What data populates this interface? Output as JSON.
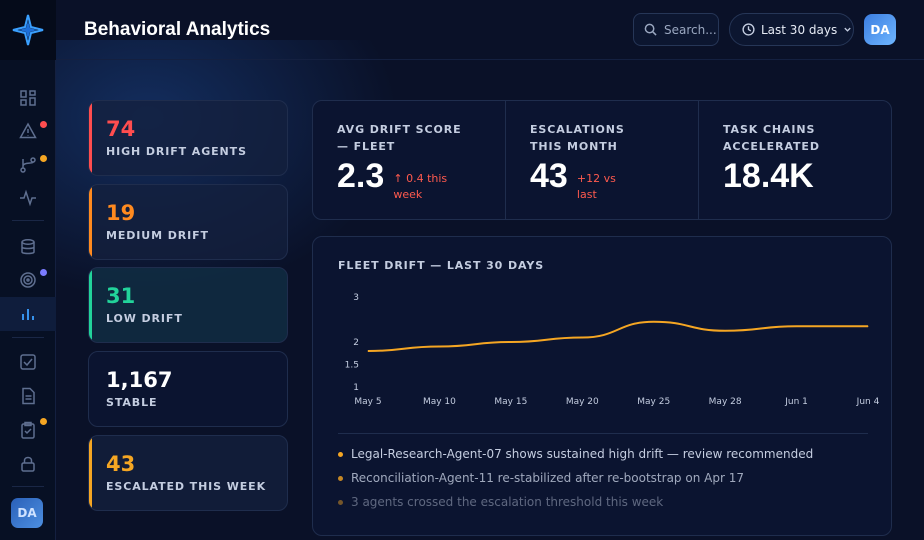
{
  "header": {
    "title": "Behavioral Analytics",
    "search_placeholder": "Search...",
    "date_range": "Last 30 days",
    "user_initials": "DA"
  },
  "sidebar": {
    "user_initials": "DA",
    "items": [
      {
        "icon": "dashboard-icon"
      },
      {
        "icon": "alert-triangle-icon",
        "badge_color": "#ff4d4f"
      },
      {
        "icon": "git-branch-icon",
        "badge_color": "#f5a623"
      },
      {
        "icon": "activity-icon"
      },
      {
        "icon": "database-icon"
      },
      {
        "icon": "target-icon",
        "badge_color": "#7b7cff"
      },
      {
        "icon": "bar-chart-icon",
        "active": true
      },
      {
        "icon": "check-square-icon"
      },
      {
        "icon": "file-text-icon"
      },
      {
        "icon": "clipboard-check-icon",
        "badge_color": "#f5a623"
      },
      {
        "icon": "lock-icon"
      }
    ]
  },
  "stat_cards": [
    {
      "value": "74",
      "label": "HIGH DRIFT AGENTS",
      "color": "#ff4d4f"
    },
    {
      "value": "19",
      "label": "MEDIUM DRIFT",
      "color": "#ff8a1f"
    },
    {
      "value": "31",
      "label": "LOW DRIFT",
      "color": "#22d39a"
    },
    {
      "value": "1,167",
      "label": "STABLE",
      "color": "#ffffff"
    },
    {
      "value": "43",
      "label": "ESCALATED THIS WEEK",
      "color": "#f5a623"
    }
  ],
  "kpis": [
    {
      "label": "AVG DRIFT SCORE — FLEET",
      "value": "2.3",
      "delta": "↑ 0.4 this week"
    },
    {
      "label": "ESCALATIONS THIS MONTH",
      "value": "43",
      "delta": "+12 vs last"
    },
    {
      "label": "TASK CHAINS ACCELERATED",
      "value": "18.4K",
      "delta": ""
    }
  ],
  "chart_data": {
    "type": "line",
    "title": "FLEET DRIFT — LAST 30 DAYS",
    "x": [
      "May 5",
      "May 10",
      "May 15",
      "May 20",
      "May 25",
      "May 28",
      "Jun 1",
      "Jun 4"
    ],
    "y_ticks": [
      "3",
      "2",
      "1.5",
      "1"
    ],
    "series": [
      {
        "values": [
          1.8,
          1.9,
          2.0,
          2.1,
          2.45,
          2.25,
          2.35,
          2.35
        ],
        "color": "#f5a623"
      }
    ],
    "ylim": [
      1,
      3
    ]
  },
  "insights": [
    "Legal-Research-Agent-07 shows sustained high drift — review recommended",
    "Reconciliation-Agent-11 re-stabilized after re-bootstrap on Apr 17",
    "3 agents crossed the escalation threshold this week"
  ]
}
